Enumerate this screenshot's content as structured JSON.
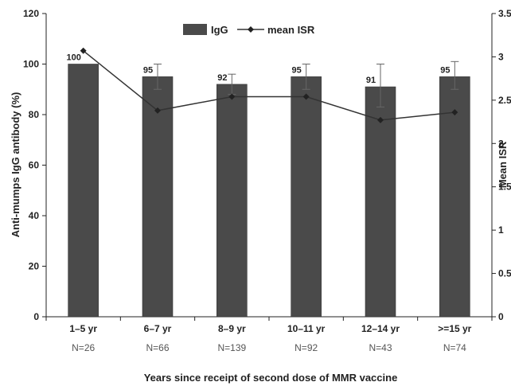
{
  "chart_data": {
    "type": "bar",
    "categories": [
      "1–5 yr",
      "6–7 yr",
      "8–9 yr",
      "10–11 yr",
      "12–14 yr",
      ">=15 yr"
    ],
    "sample_sizes": [
      "N=26",
      "N=66",
      "N=139",
      "N=92",
      "N=43",
      "N=74"
    ],
    "series": [
      {
        "name": "IgG",
        "axis": "left",
        "values": [
          100,
          95,
          92,
          95,
          91,
          95
        ],
        "data_labels": [
          "100",
          "95",
          "92",
          "95",
          "91",
          "95"
        ],
        "error": [
          [
            100,
            100
          ],
          [
            90,
            100
          ],
          [
            88,
            96
          ],
          [
            90,
            100
          ],
          [
            83,
            100
          ],
          [
            90,
            101
          ]
        ],
        "color": "#4a4a4a"
      },
      {
        "name": "mean ISR",
        "axis": "right",
        "type": "line",
        "values": [
          3.07,
          2.38,
          2.54,
          2.54,
          2.27,
          2.36
        ],
        "color": "#333333"
      }
    ],
    "xlabel": "Years since receipt of second dose of MMR vaccine",
    "ylabel": "Anti-mumps IgG antibody (%)",
    "y2label": "Mean ISR",
    "ylim": [
      0,
      120
    ],
    "y2lim": [
      0,
      3.5
    ],
    "yticks": [
      "0",
      "20",
      "40",
      "60",
      "80",
      "100",
      "120"
    ],
    "y2ticks": [
      "0",
      "0.5",
      "1",
      "1.5",
      "2",
      "2.5",
      "3",
      "3.5"
    ],
    "legend_position": "top-center",
    "grid": false
  }
}
